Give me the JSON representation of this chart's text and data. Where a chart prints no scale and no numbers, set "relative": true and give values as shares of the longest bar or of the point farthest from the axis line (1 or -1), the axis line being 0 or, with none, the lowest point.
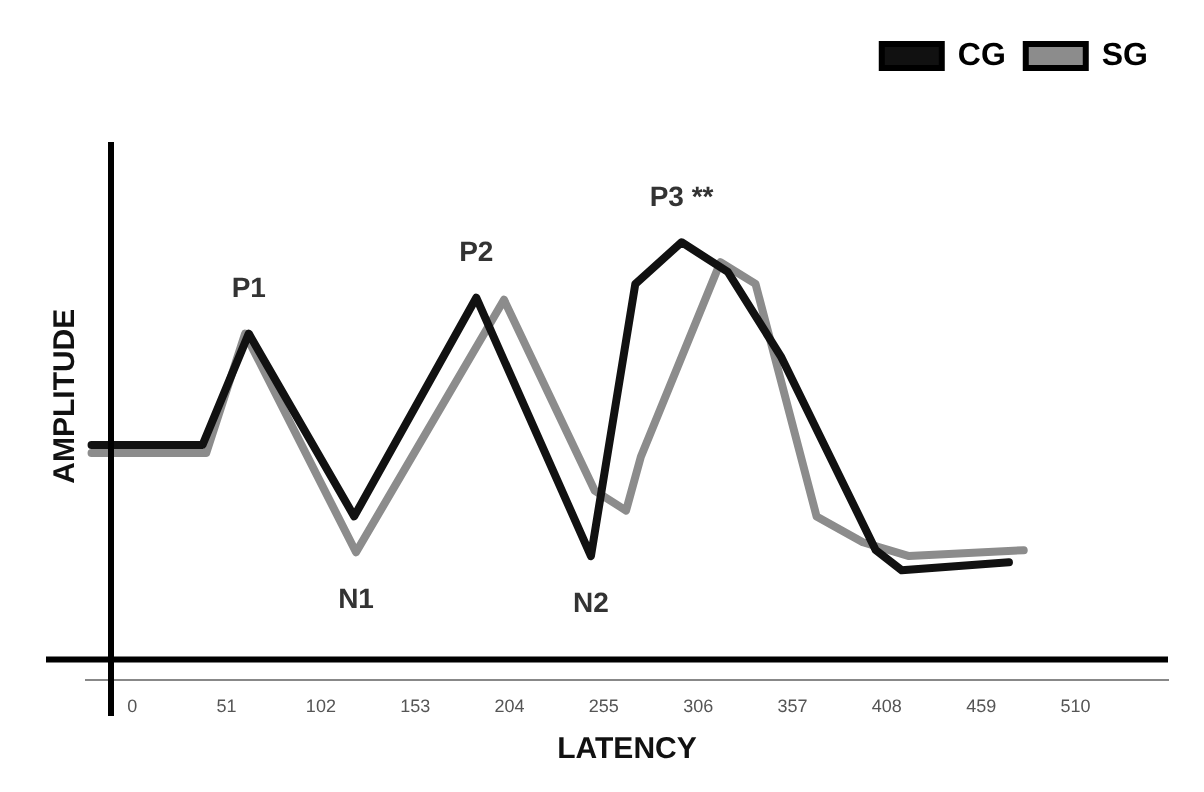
{
  "chart_data": {
    "type": "line",
    "relative": true,
    "xlabel": "LATENCY",
    "ylabel": "AMPLITUDE",
    "xlim": [
      -25,
      560
    ],
    "xticks": [
      0,
      51,
      102,
      153,
      204,
      255,
      306,
      357,
      408,
      459,
      510
    ],
    "grid": false,
    "legend": "top right",
    "marker": "none",
    "line_style": "solid",
    "series": [
      {
        "name": "CG",
        "color": "#111111",
        "x": [
          -22,
          38,
          63,
          120,
          186,
          248,
          272,
          297,
          322,
          351,
          402,
          416,
          474
        ],
        "values": [
          0.514,
          0.514,
          0.781,
          0.343,
          0.867,
          0.248,
          0.9,
          1.0,
          0.929,
          0.724,
          0.262,
          0.214,
          0.233
        ]
      },
      {
        "name": "SG",
        "color": "#8c8c8c",
        "x": [
          -22,
          40,
          61,
          121,
          201,
          250,
          267,
          275,
          318,
          337,
          370,
          395,
          420,
          482
        ],
        "values": [
          0.495,
          0.495,
          0.781,
          0.257,
          0.862,
          0.405,
          0.357,
          0.486,
          0.952,
          0.9,
          0.343,
          0.281,
          0.248,
          0.262
        ]
      }
    ],
    "annotations": [
      {
        "text": "P1",
        "x": 63,
        "y": 0.781
      },
      {
        "text": "N1",
        "x": 121,
        "y": 0.257
      },
      {
        "text": "P2",
        "x": 186,
        "y": 0.867
      },
      {
        "text": "N2",
        "x": 248,
        "y": 0.248
      },
      {
        "text": "P3 **",
        "x": 297,
        "y": 1.0
      }
    ]
  }
}
